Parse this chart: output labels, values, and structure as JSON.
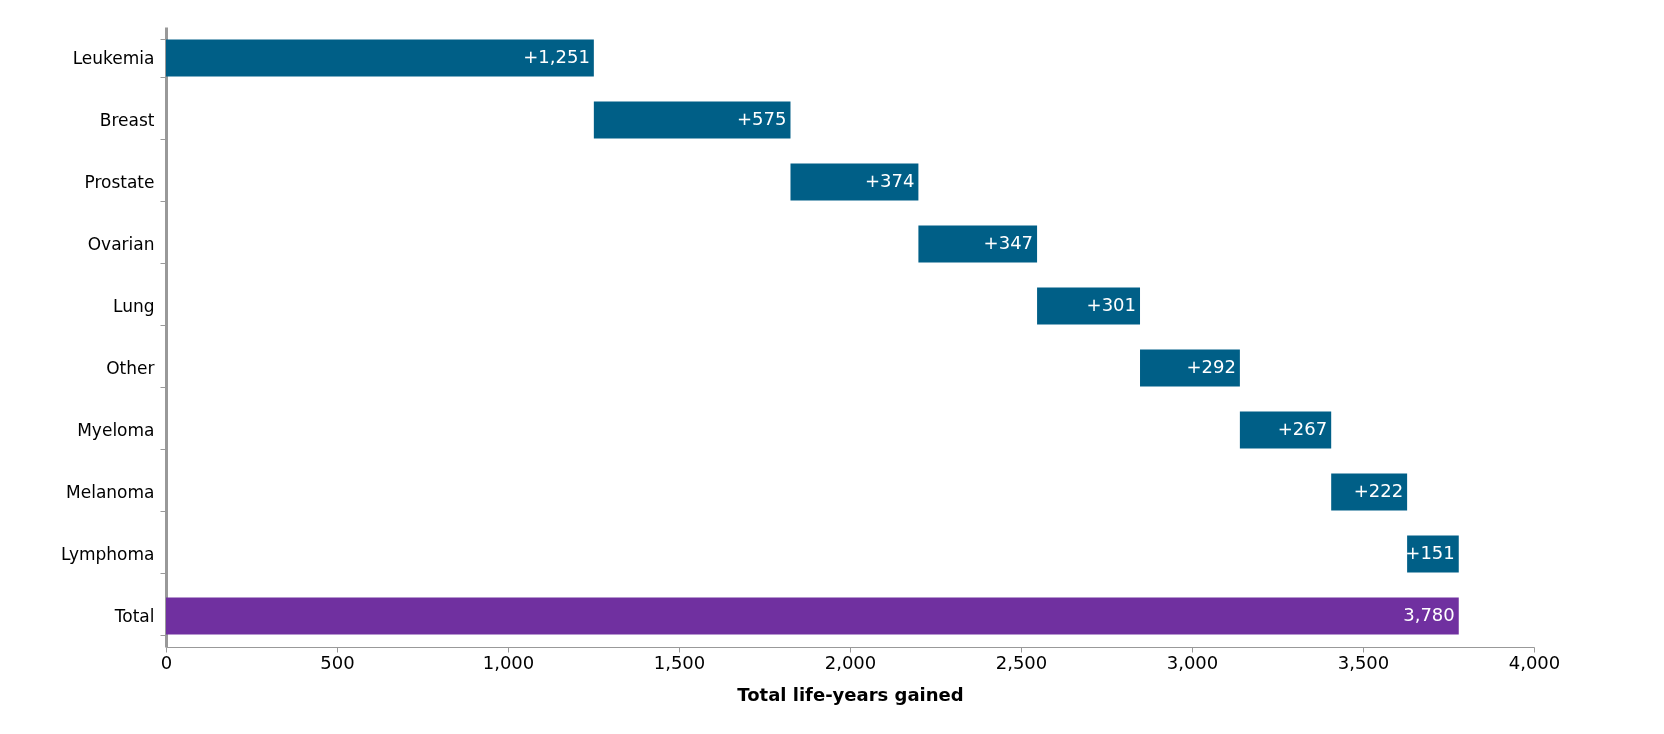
{
  "chart_data": {
    "type": "bar",
    "orientation": "horizontal",
    "xlabel": "Total life-years gained",
    "categories": [
      "Leukemia",
      "Breast",
      "Prostate",
      "Ovarian",
      "Lung",
      "Other",
      "Myeloma",
      "Melanoma",
      "Lymphoma",
      "Total"
    ],
    "values": [
      1251,
      575,
      374,
      347,
      301,
      292,
      267,
      222,
      151,
      3780
    ],
    "base": [
      0,
      1251,
      1826,
      2200,
      2547,
      2848,
      3140,
      3407,
      3629,
      0
    ],
    "colors": [
      "#005f87",
      "#005f87",
      "#005f87",
      "#005f87",
      "#005f87",
      "#005f87",
      "#005f87",
      "#005f87",
      "#005f87",
      "#7030a0"
    ],
    "value_labels": [
      "+1,251",
      "+575",
      "+374",
      "+347",
      "+301",
      "+292",
      "+267",
      "+222",
      "+151",
      "3,780"
    ],
    "xlim": [
      0,
      4000
    ],
    "xticks": [
      0,
      500,
      {
        "value": 1000,
        "label": "1,000"
      },
      {
        "value": 1500,
        "label": "1,500"
      },
      {
        "value": 2000,
        "label": "2,000"
      },
      {
        "value": 2500,
        "label": "2,500"
      },
      {
        "value": 3000,
        "label": "3,000"
      },
      {
        "value": 3500,
        "label": "3,500"
      },
      {
        "value": 4000,
        "label": "4,000"
      }
    ],
    "grid": false
  }
}
